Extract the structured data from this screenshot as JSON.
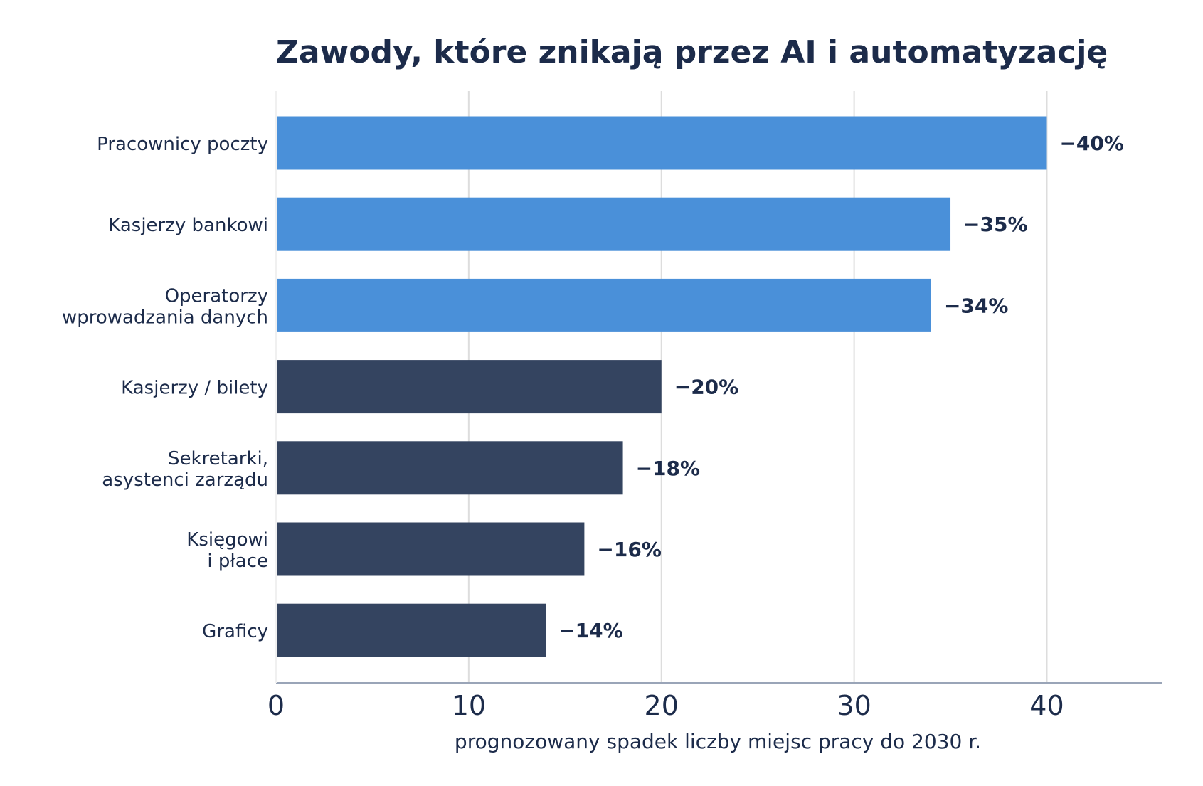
{
  "chart_data": {
    "type": "bar",
    "orientation": "horizontal",
    "title": "Zawody, które znikają przez AI i automatyzację",
    "xlabel": "prognozowany spadek liczby miejsc pracy do 2030 r.",
    "ylabel": "",
    "xlim": [
      0,
      46
    ],
    "xticks": [
      0,
      10,
      20,
      30,
      40
    ],
    "grid": "vertical",
    "categories": [
      [
        "Pracownicy poczty"
      ],
      [
        "Kasjerzy bankowi"
      ],
      [
        "Operatorzy",
        "wprowadzania danych"
      ],
      [
        "Kasjerzy / bilety"
      ],
      [
        "Sekretarki,",
        "asystenci zarządu"
      ],
      [
        "Księgowi",
        "i płace"
      ],
      [
        "Graficy"
      ]
    ],
    "values": [
      40,
      35,
      34,
      20,
      18,
      16,
      14
    ],
    "value_labels": [
      "−40%",
      "−35%",
      "−34%",
      "−20%",
      "−18%",
      "−16%",
      "−14%"
    ],
    "highlight": [
      true,
      true,
      true,
      false,
      false,
      false,
      false
    ],
    "colors": {
      "highlight": "#4a90d9",
      "default": "#344460",
      "text": "#1c2b4a",
      "grid": "#dddddd",
      "axis": "#9aa5b8"
    }
  }
}
